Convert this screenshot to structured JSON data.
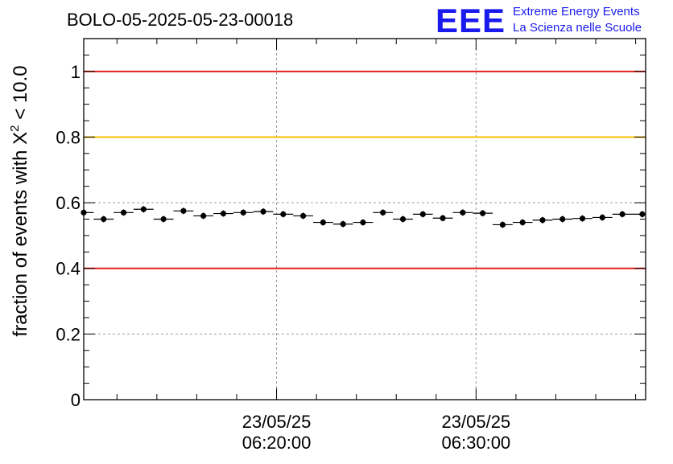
{
  "chart_data": {
    "type": "scatter",
    "title": "BOLO-05-2025-05-23-00018",
    "ylabel": "fraction of events with X",
    "ylabel_sup": "2",
    "ylabel_suffix": " < 10.0",
    "xlabel": "",
    "ylim": [
      0,
      1.1
    ],
    "xlim": [
      "2025-05-23 06:10:20",
      "2025-05-23 06:38:30"
    ],
    "grid": true,
    "yticks": [
      {
        "value": 0,
        "label": "0"
      },
      {
        "value": 0.2,
        "label": "0.2"
      },
      {
        "value": 0.4,
        "label": "0.4"
      },
      {
        "value": 0.6,
        "label": "0.6"
      },
      {
        "value": 0.8,
        "label": "0.8"
      },
      {
        "value": 1,
        "label": "1"
      }
    ],
    "xticks": [
      {
        "value": "2025-05-23 06:20:00",
        "date_label": "23/05/25",
        "time_label": "06:20:00"
      },
      {
        "value": "2025-05-23 06:30:00",
        "date_label": "23/05/25",
        "time_label": "06:30:00"
      }
    ],
    "reference_lines": [
      {
        "y": 1.0,
        "color": "#e8201a"
      },
      {
        "y": 0.8,
        "color": "#f5c000"
      },
      {
        "y": 0.4,
        "color": "#e8201a"
      }
    ],
    "series": [
      {
        "color": "#000000",
        "x": [
          "06:10:20",
          "06:11:20",
          "06:12:20",
          "06:13:20",
          "06:14:20",
          "06:15:20",
          "06:16:20",
          "06:17:20",
          "06:18:20",
          "06:19:20",
          "06:20:20",
          "06:21:20",
          "06:22:20",
          "06:23:20",
          "06:24:20",
          "06:25:20",
          "06:26:20",
          "06:27:20",
          "06:28:20",
          "06:29:20",
          "06:30:20",
          "06:31:20",
          "06:32:20",
          "06:33:20",
          "06:34:20",
          "06:35:20",
          "06:36:20",
          "06:37:20",
          "06:38:20"
        ],
        "y": [
          0.57,
          0.55,
          0.57,
          0.58,
          0.55,
          0.575,
          0.56,
          0.567,
          0.57,
          0.573,
          0.565,
          0.56,
          0.54,
          0.535,
          0.54,
          0.57,
          0.55,
          0.565,
          0.553,
          0.57,
          0.568,
          0.533,
          0.54,
          0.547,
          0.55,
          0.552,
          0.555,
          0.565,
          0.565
        ]
      }
    ]
  },
  "logo": {
    "text": "EEE",
    "line1": "Extreme Energy Events",
    "line2": "La Scienza nelle Scuole",
    "color": "#1a1aee"
  }
}
